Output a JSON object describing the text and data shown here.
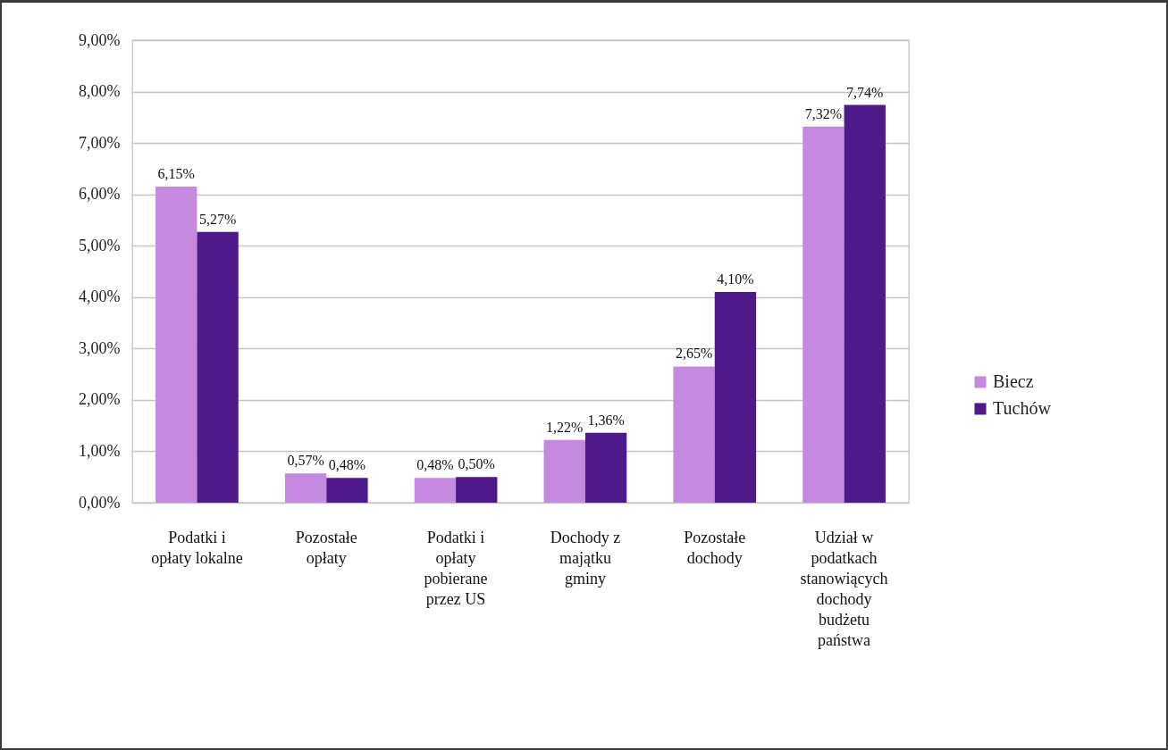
{
  "chart_data": {
    "type": "bar",
    "categories": [
      "Podatki i opłaty lokalne",
      "Pozostałe opłaty",
      "Podatki i opłaty pobierane przez US",
      "Dochody z majątku gminy",
      "Pozostałe dochody",
      "Udział w podatkach stanowiących dochody budżetu państwa"
    ],
    "series": [
      {
        "name": "Biecz",
        "color": "#c58ae0",
        "values": [
          6.15,
          0.57,
          0.48,
          1.22,
          2.65,
          7.32
        ],
        "value_labels": [
          "6,15%",
          "0,57%",
          "0,48%",
          "1,22%",
          "2,65%",
          "7,32%"
        ]
      },
      {
        "name": "Tuchów",
        "color": "#4e1a8a",
        "values": [
          5.27,
          0.48,
          0.5,
          1.36,
          4.1,
          7.74
        ],
        "value_labels": [
          "5,27%",
          "0,48%",
          "0,50%",
          "1,36%",
          "4,10%",
          "7,74%"
        ]
      }
    ],
    "ylim": [
      0,
      9
    ],
    "yticks": [
      {
        "value": 0,
        "label": "0,00%"
      },
      {
        "value": 1,
        "label": "1,00%"
      },
      {
        "value": 2,
        "label": "2,00%"
      },
      {
        "value": 3,
        "label": "3,00%"
      },
      {
        "value": 4,
        "label": "4,00%"
      },
      {
        "value": 5,
        "label": "5,00%"
      },
      {
        "value": 6,
        "label": "6,00%"
      },
      {
        "value": 7,
        "label": "7,00%"
      },
      {
        "value": 8,
        "label": "8,00%"
      },
      {
        "value": 9,
        "label": "9,00%"
      }
    ],
    "grid": "y",
    "legend": "right"
  }
}
